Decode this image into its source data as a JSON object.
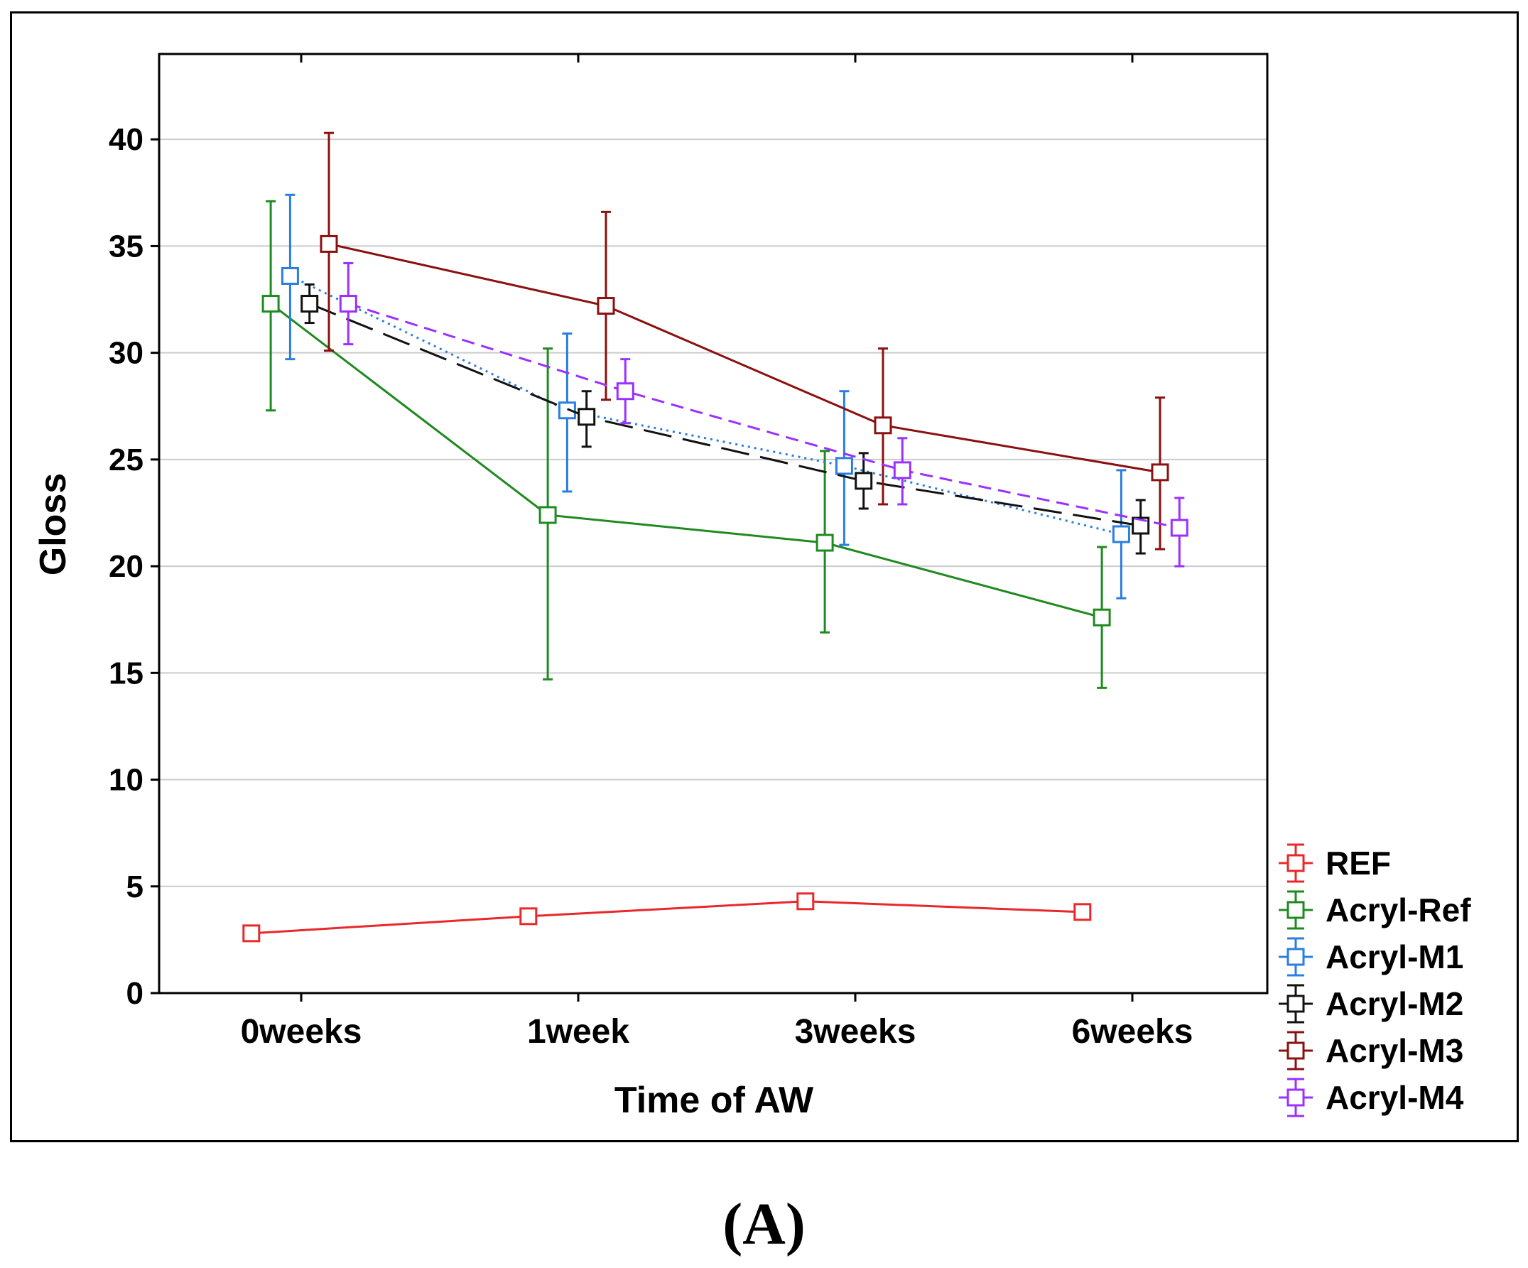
{
  "chart_data": {
    "type": "line",
    "title": "",
    "xlabel": "Time of AW",
    "ylabel": "Gloss",
    "ylim": [
      0,
      44
    ],
    "yticks": [
      0,
      5,
      10,
      15,
      20,
      25,
      30,
      35,
      40
    ],
    "grid": true,
    "legend_position": "right-bottom",
    "categories": [
      "0weeks",
      "1week",
      "3weeks",
      "6weeks"
    ],
    "series": [
      {
        "name": "REF",
        "color": "#e8282a",
        "dash": "solid",
        "offset": -0.18,
        "values": [
          2.8,
          3.6,
          4.3,
          3.8
        ],
        "lower": [
          2.6,
          3.3,
          4.0,
          3.5
        ],
        "upper": [
          3.0,
          3.9,
          4.6,
          4.1
        ]
      },
      {
        "name": "Acryl-Ref",
        "color": "#1f8a1f",
        "dash": "solid",
        "offset": -0.11,
        "values": [
          32.3,
          22.4,
          21.1,
          17.6
        ],
        "lower": [
          27.3,
          14.7,
          16.9,
          14.3
        ],
        "upper": [
          37.1,
          30.2,
          25.4,
          20.9
        ]
      },
      {
        "name": "Acryl-M1",
        "color": "#2a7ee0",
        "dash": "dotted",
        "offset": -0.04,
        "values": [
          33.6,
          27.3,
          24.7,
          21.5
        ],
        "lower": [
          29.7,
          23.5,
          21.0,
          18.5
        ],
        "upper": [
          37.4,
          30.9,
          28.2,
          24.5
        ]
      },
      {
        "name": "Acryl-M2",
        "color": "#111111",
        "dash": "longdash",
        "offset": 0.03,
        "values": [
          32.3,
          27.0,
          24.0,
          21.9
        ],
        "lower": [
          31.4,
          25.6,
          22.7,
          20.6
        ],
        "upper": [
          33.2,
          28.2,
          25.3,
          23.1
        ]
      },
      {
        "name": "Acryl-M3",
        "color": "#8b1010",
        "dash": "solid",
        "offset": 0.1,
        "values": [
          35.1,
          32.2,
          26.6,
          24.4
        ],
        "lower": [
          30.1,
          27.8,
          22.9,
          20.8
        ],
        "upper": [
          40.3,
          36.6,
          30.2,
          27.9
        ]
      },
      {
        "name": "Acryl-M4",
        "color": "#9b30ff",
        "dash": "dashed",
        "offset": 0.17,
        "values": [
          32.3,
          28.2,
          24.5,
          21.8
        ],
        "lower": [
          30.4,
          26.7,
          22.9,
          20.0
        ],
        "upper": [
          34.2,
          29.7,
          26.0,
          23.2
        ]
      }
    ]
  },
  "panel_label": "(A)"
}
